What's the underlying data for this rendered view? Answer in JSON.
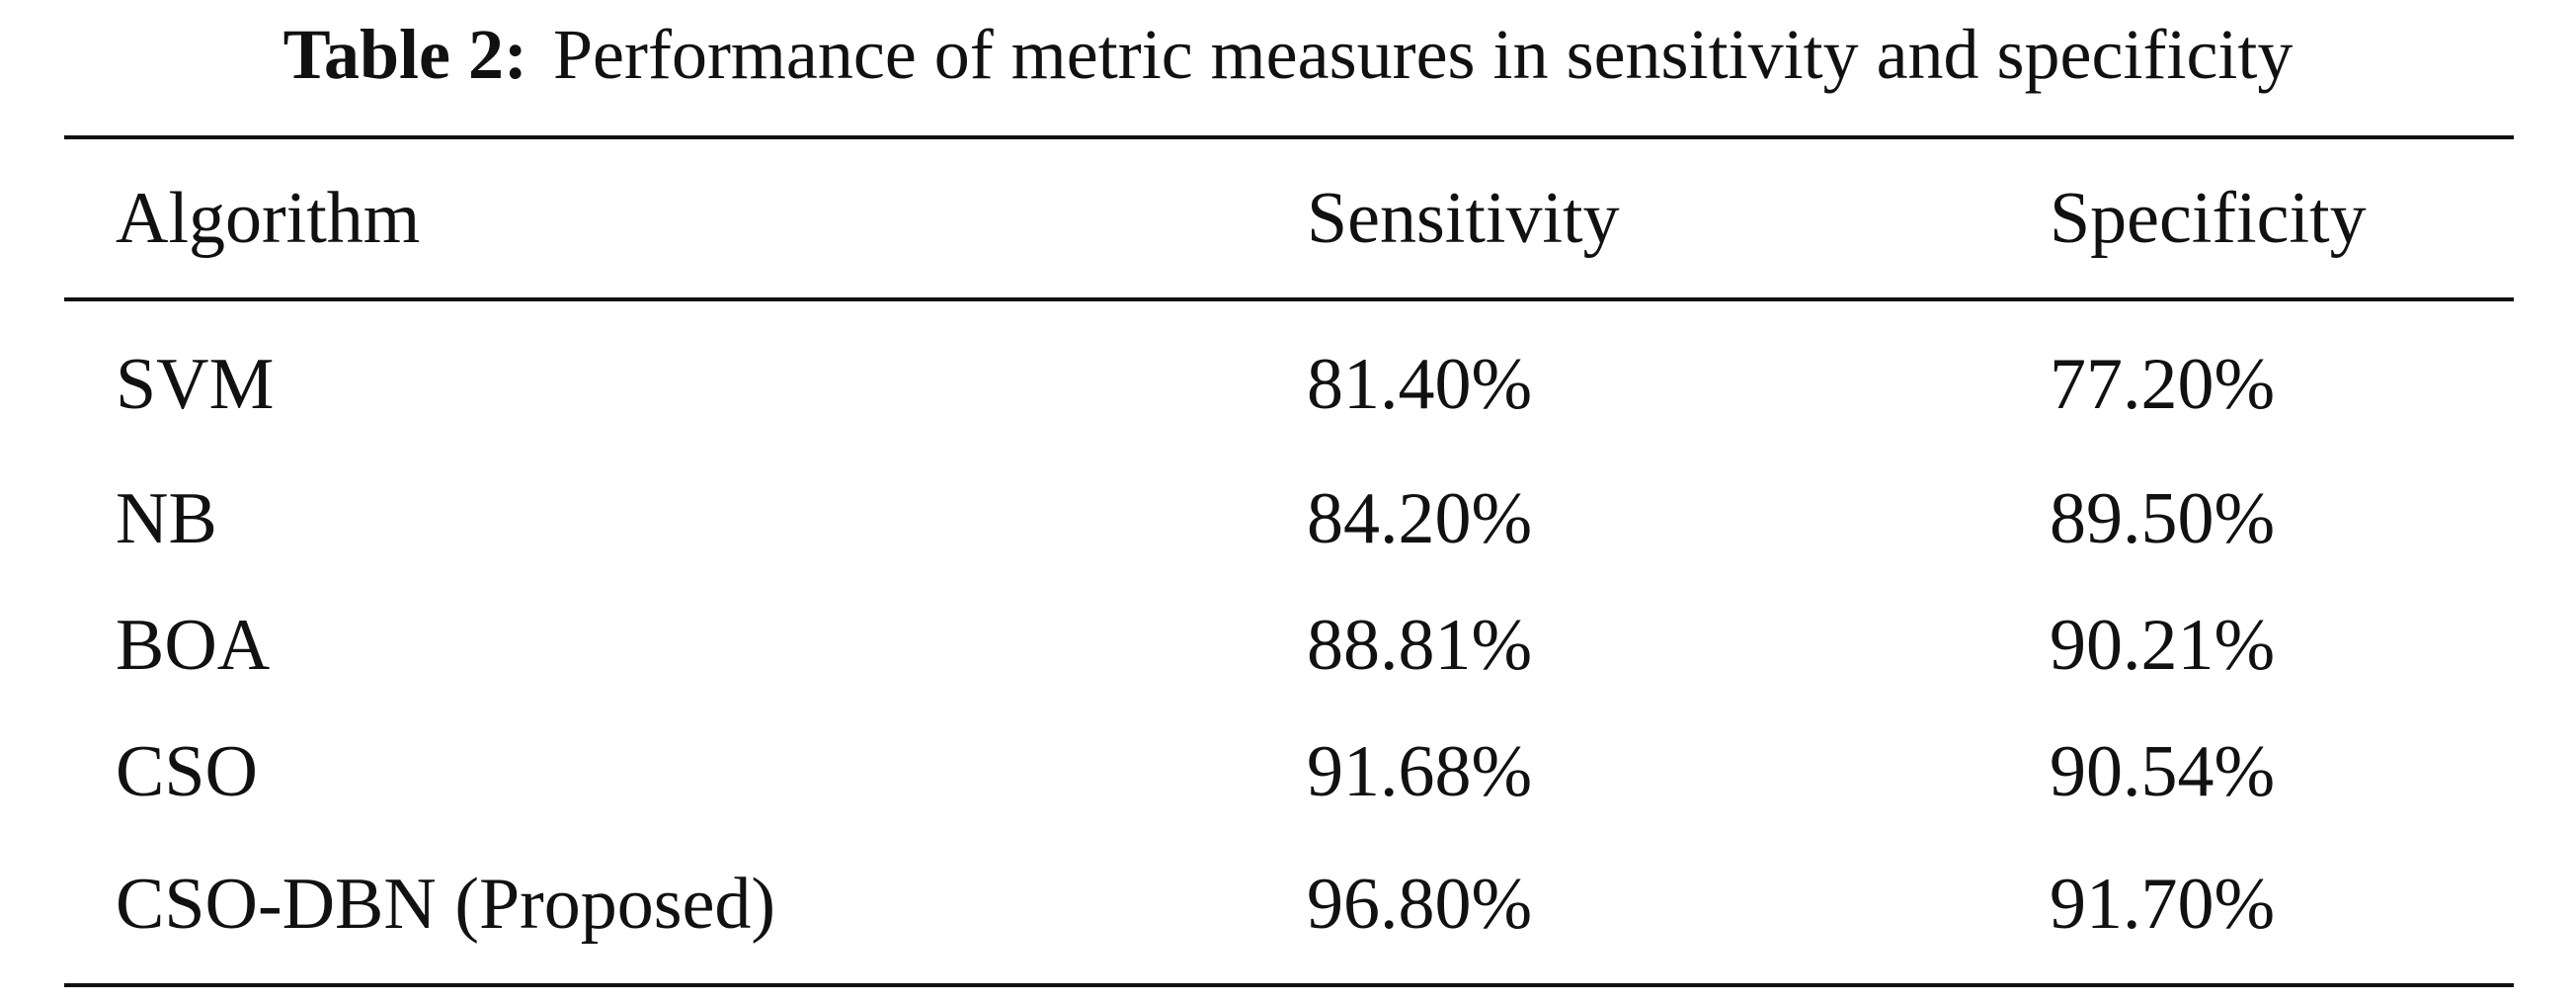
{
  "caption": {
    "label": "Table 2:",
    "text": "Performance of metric measures in sensitivity and specificity"
  },
  "table": {
    "headers": [
      "Algorithm",
      "Sensitivity",
      "Specificity"
    ],
    "rows": [
      [
        "SVM",
        "81.40%",
        "77.20%"
      ],
      [
        "NB",
        "84.20%",
        "89.50%"
      ],
      [
        "BOA",
        "88.81%",
        "90.21%"
      ],
      [
        "CSO",
        "91.68%",
        "90.54%"
      ],
      [
        "CSO-DBN (Proposed)",
        "96.80%",
        "91.70%"
      ]
    ]
  }
}
